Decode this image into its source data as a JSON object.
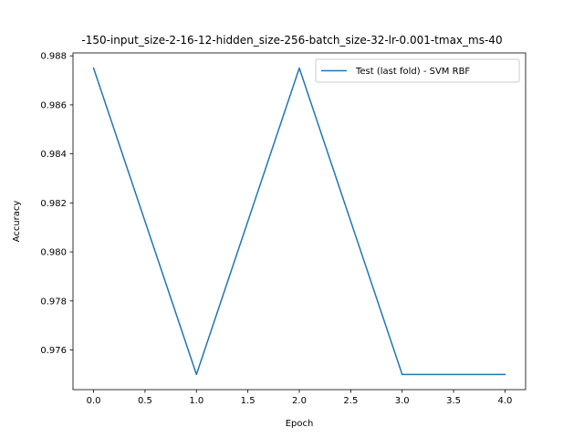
{
  "chart_data": {
    "type": "line",
    "title": "-150-input_size-2-16-12-hidden_size-256-batch_size-32-lr-0.001-tmax_ms-40",
    "xlabel": "Epoch",
    "ylabel": "Accuracy",
    "xlim": [
      -0.2,
      4.2
    ],
    "ylim": [
      0.97438,
      0.98812
    ],
    "x_ticks": [
      0.0,
      0.5,
      1.0,
      1.5,
      2.0,
      2.5,
      3.0,
      3.5,
      4.0
    ],
    "x_tick_labels": [
      "0.0",
      "0.5",
      "1.0",
      "1.5",
      "2.0",
      "2.5",
      "3.0",
      "3.5",
      "4.0"
    ],
    "y_ticks": [
      0.976,
      0.978,
      0.98,
      0.982,
      0.984,
      0.986,
      0.988
    ],
    "y_tick_labels": [
      "0.976",
      "0.978",
      "0.980",
      "0.982",
      "0.984",
      "0.986",
      "0.988"
    ],
    "grid": false,
    "legend_position": "top-right",
    "series": [
      {
        "name": "Test (last fold) - SVM RBF",
        "color": "#1f77b4",
        "x": [
          0,
          1,
          2,
          3,
          4
        ],
        "y": [
          0.9875,
          0.975,
          0.9875,
          0.975,
          0.975
        ]
      }
    ]
  }
}
